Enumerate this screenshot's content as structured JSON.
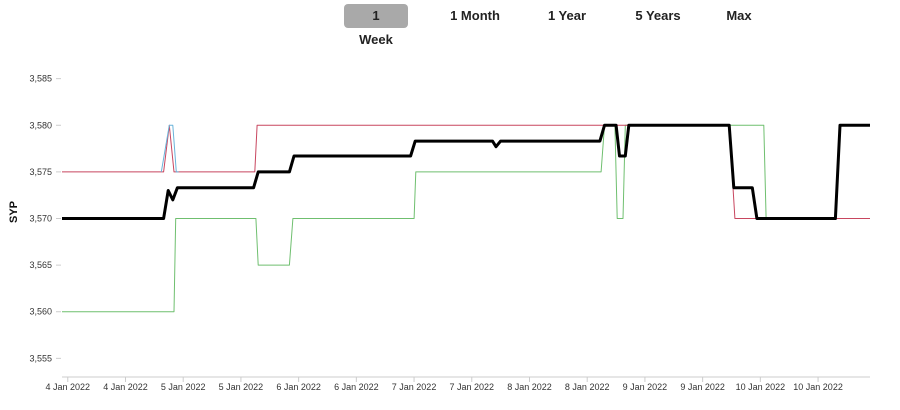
{
  "range_tabs": [
    {
      "label": "1 Week",
      "active": true
    },
    {
      "label": "1 Month",
      "active": false
    },
    {
      "label": "1 Year",
      "active": false
    },
    {
      "label": "5 Years",
      "active": false
    },
    {
      "label": "Max",
      "active": false
    }
  ],
  "colors": {
    "average": "#000000",
    "high": "#c8465f",
    "low": "#6fbf6f",
    "alt": "#69b3d9",
    "active_tab": "#a9a9a9",
    "axis": "#cccccc"
  },
  "chart_data": {
    "type": "line",
    "ylabel": "SYP",
    "ylim": [
      3553,
      3587
    ],
    "y_ticks": [
      "3,555",
      "3,560",
      "3,565",
      "3,570",
      "3,575",
      "3,580",
      "3,585"
    ],
    "y_tick_values": [
      3555,
      3560,
      3565,
      3570,
      3575,
      3580,
      3585
    ],
    "x_ticks": [
      "4 Jan 2022",
      "4 Jan 2022",
      "5 Jan 2022",
      "5 Jan 2022",
      "6 Jan 2022",
      "6 Jan 2022",
      "7 Jan 2022",
      "7 Jan 2022",
      "8 Jan 2022",
      "8 Jan 2022",
      "9 Jan 2022",
      "9 Jan 2022",
      "10 Jan 2022",
      "10 Jan 2022"
    ],
    "x_tick_positions": [
      0.5,
      5.5,
      10.5,
      15.5,
      20.5,
      25.5,
      30.5,
      35.5,
      40.5,
      45.5,
      50.5,
      55.5,
      60.5,
      65.5
    ],
    "xlim": [
      0,
      70
    ],
    "grid": false,
    "series": [
      {
        "key": "low",
        "x": [
          0,
          9.7,
          9.85,
          16.8,
          17,
          19.7,
          20,
          30.5,
          30.65,
          46.7,
          47,
          47.9,
          48.1,
          48.6,
          48.8,
          60.8,
          61,
          70
        ],
        "y": [
          3560,
          3560,
          3570,
          3570,
          3565,
          3565,
          3570,
          3570,
          3575,
          3575,
          3580,
          3580,
          3570,
          3570,
          3580,
          3580,
          3570,
          3570
        ]
      },
      {
        "key": "high",
        "x": [
          0,
          8.8,
          9.3,
          9.7,
          16.7,
          16.9,
          57.8,
          58.3,
          70
        ],
        "y": [
          3575,
          3575,
          3580,
          3575,
          3575,
          3580,
          3580,
          3570,
          3570
        ]
      },
      {
        "key": "alt",
        "x": [
          8.6,
          9.3,
          9.6,
          9.9,
          10.1
        ],
        "y": [
          3575,
          3580,
          3580,
          3575,
          3575
        ]
      },
      {
        "key": "average",
        "x": [
          0,
          8.8,
          9.2,
          9.6,
          10,
          16.6,
          17,
          19.7,
          20.1,
          30.2,
          30.6,
          37.3,
          37.6,
          38,
          46.6,
          47,
          48,
          48.3,
          48.8,
          49.1,
          57.8,
          58.2,
          59.8,
          60.2,
          67,
          67.4,
          70
        ],
        "y": [
          3570,
          3570,
          3573,
          3572,
          3573.3,
          3573.3,
          3575,
          3575,
          3576.7,
          3576.7,
          3578.3,
          3578.3,
          3577.7,
          3578.3,
          3578.3,
          3580,
          3580,
          3576.7,
          3576.7,
          3580,
          3580,
          3573.3,
          3573.3,
          3570,
          3570,
          3580,
          3580
        ]
      }
    ]
  }
}
